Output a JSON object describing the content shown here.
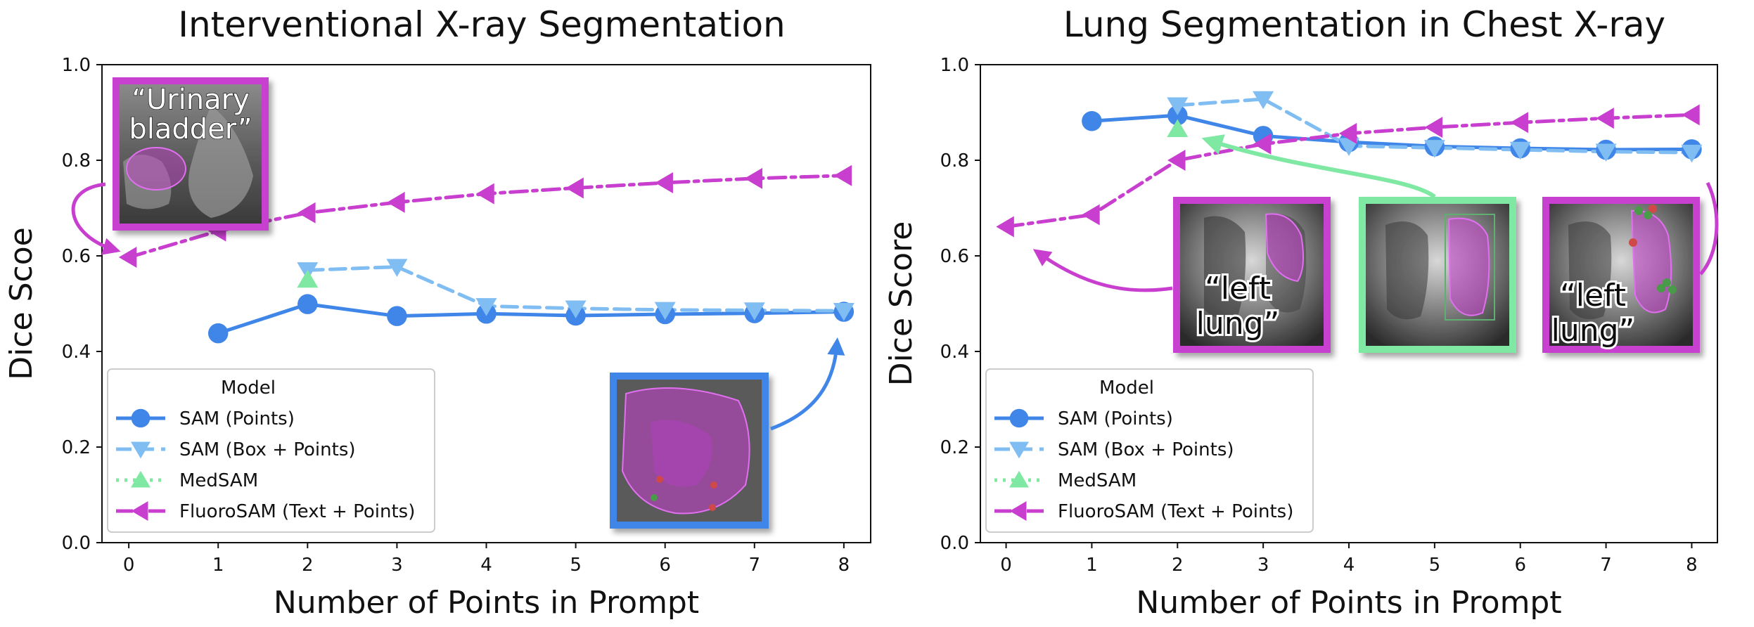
{
  "chart_data": [
    {
      "type": "line",
      "title": "Interventional X-ray Segmentation",
      "xlabel": "Number of Points in Prompt",
      "ylabel": "Dice Scoe",
      "xlim": [
        -0.3,
        8.3
      ],
      "ylim": [
        0.0,
        1.0
      ],
      "xticks": [
        "0",
        "1",
        "2",
        "3",
        "4",
        "5",
        "6",
        "7",
        "8"
      ],
      "yticks": [
        "0.0",
        "0.2",
        "0.4",
        "0.6",
        "0.8",
        "1.0"
      ],
      "grid": false,
      "legend": {
        "title": "Model",
        "placement": "lower-left"
      },
      "series": [
        {
          "name": "SAM (Points)",
          "marker": "circle",
          "dash": "solid",
          "color": "#3f86e8",
          "x": [
            1,
            2,
            3,
            4,
            5,
            6,
            7,
            8
          ],
          "y": [
            0.438,
            0.499,
            0.474,
            0.479,
            0.475,
            0.478,
            0.48,
            0.483
          ]
        },
        {
          "name": "SAM (Box + Points)",
          "marker": "triangle-down",
          "dash": "dashed",
          "color": "#7fbdf2",
          "x": [
            2,
            3,
            4,
            5,
            6,
            7,
            8
          ],
          "y": [
            0.57,
            0.577,
            0.495,
            0.49,
            0.487,
            0.486,
            0.485
          ]
        },
        {
          "name": "MedSAM",
          "marker": "triangle-up",
          "dash": "dotted",
          "color": "#7fe8a3",
          "x": [
            2
          ],
          "y": [
            0.55
          ]
        },
        {
          "name": "FluoroSAM (Text + Points)",
          "marker": "triangle-left",
          "dash": "dashdot",
          "color": "#c83fcf",
          "x": [
            0,
            1,
            2,
            3,
            4,
            5,
            6,
            7,
            8
          ],
          "y": [
            0.597,
            0.652,
            0.69,
            0.712,
            0.73,
            0.742,
            0.753,
            0.762,
            0.768
          ]
        }
      ],
      "insets": [
        {
          "label": "“Urinary bladder”",
          "border_color": "#c83fcf"
        },
        {
          "label": "",
          "border_color": "#3f86e8"
        }
      ]
    },
    {
      "type": "line",
      "title": "Lung Segmentation in Chest X-ray",
      "xlabel": "Number of Points in Prompt",
      "ylabel": "Dice Score",
      "xlim": [
        -0.3,
        8.3
      ],
      "ylim": [
        0.0,
        1.0
      ],
      "xticks": [
        "0",
        "1",
        "2",
        "3",
        "4",
        "5",
        "6",
        "7",
        "8"
      ],
      "yticks": [
        "0.0",
        "0.2",
        "0.4",
        "0.6",
        "0.8",
        "1.0"
      ],
      "grid": false,
      "legend": {
        "title": "Model",
        "placement": "lower-left"
      },
      "series": [
        {
          "name": "SAM (Points)",
          "marker": "circle",
          "dash": "solid",
          "color": "#3f86e8",
          "x": [
            1,
            2,
            3,
            4,
            5,
            6,
            7,
            8
          ],
          "y": [
            0.882,
            0.894,
            0.851,
            0.838,
            0.829,
            0.825,
            0.822,
            0.823
          ]
        },
        {
          "name": "SAM (Box + Points)",
          "marker": "triangle-down",
          "dash": "dashed",
          "color": "#7fbdf2",
          "x": [
            2,
            3,
            4,
            5,
            6,
            7,
            8
          ],
          "y": [
            0.915,
            0.928,
            0.83,
            0.826,
            0.822,
            0.818,
            0.816
          ]
        },
        {
          "name": "MedSAM",
          "marker": "triangle-up",
          "dash": "dotted",
          "color": "#7fe8a3",
          "x": [
            2
          ],
          "y": [
            0.865
          ]
        },
        {
          "name": "FluoroSAM (Text + Points)",
          "marker": "triangle-left",
          "dash": "dashdot",
          "color": "#c83fcf",
          "x": [
            0,
            1,
            2,
            3,
            4,
            5,
            6,
            7,
            8
          ],
          "y": [
            0.661,
            0.686,
            0.8,
            0.834,
            0.856,
            0.869,
            0.879,
            0.888,
            0.895
          ]
        }
      ],
      "insets": [
        {
          "label": "“left lung”",
          "border_color": "#c83fcf"
        },
        {
          "label": "",
          "border_color": "#7fe8a3"
        },
        {
          "label": "“left lung”",
          "border_color": "#c83fcf"
        }
      ]
    }
  ]
}
